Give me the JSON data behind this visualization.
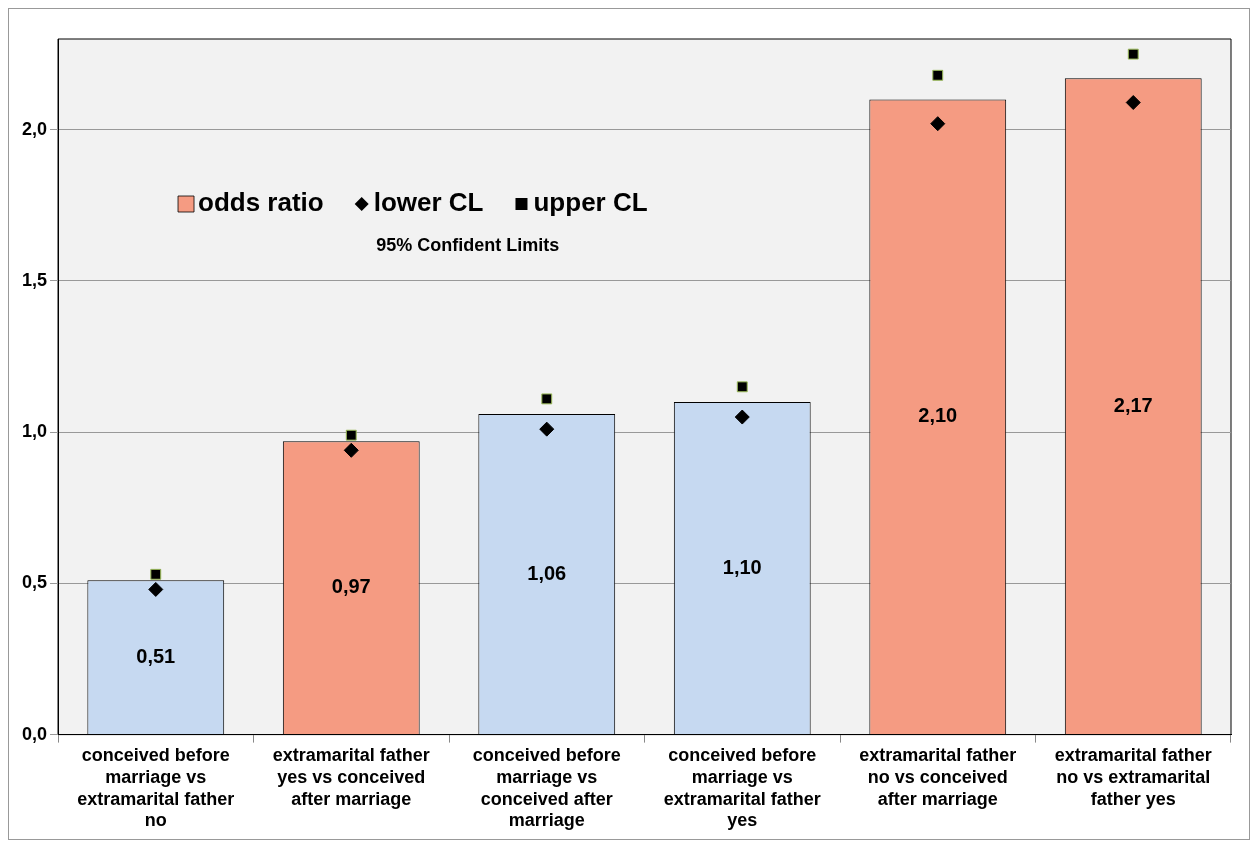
{
  "chart_data": {
    "type": "bar",
    "categories": [
      "conceived before marriage vs extramarital father no",
      "extramarital father yes vs conceived after marriage",
      "conceived before marriage vs conceived after marriage",
      "conceived before marriage vs extramarital father yes",
      "extramarital father no vs conceived after marriage",
      "extramarital father no vs extramarital father yes"
    ],
    "series": [
      {
        "name": "odds ratio",
        "type": "bar",
        "color": "#f59b82",
        "colors": [
          "#c6d9f1",
          "#f59b82",
          "#c6d9f1",
          "#c6d9f1",
          "#f59b82",
          "#f59b82"
        ],
        "values": [
          0.51,
          0.97,
          1.06,
          1.1,
          2.1,
          2.17
        ],
        "value_labels": [
          "0,51",
          "0,97",
          "1,06",
          "1,10",
          "2,10",
          "2,17"
        ]
      },
      {
        "name": "lower CL",
        "type": "scatter",
        "marker": "diamond",
        "color": "#000000",
        "x": [
          "conceived before marriage vs extramarital father no",
          "extramarital father yes vs conceived after marriage",
          "conceived before marriage vs conceived after marriage",
          "conceived before marriage vs extramarital father yes",
          "extramarital father no vs conceived after marriage",
          "extramarital father no vs extramarital father yes"
        ],
        "values": [
          0.48,
          0.94,
          1.01,
          1.05,
          2.02,
          2.09
        ]
      },
      {
        "name": "upper CL",
        "type": "scatter",
        "marker": "square",
        "color": "#000000",
        "x": [
          "conceived before marriage vs extramarital father no",
          "extramarital father yes vs conceived after marriage",
          "conceived before marriage vs conceived after marriage",
          "conceived before marriage vs extramarital father yes",
          "extramarital father no vs conceived after marriage",
          "extramarital father no vs extramarital father yes"
        ],
        "values": [
          0.53,
          0.99,
          1.11,
          1.15,
          2.18,
          2.25
        ]
      }
    ],
    "ylim": [
      0,
      2.3
    ],
    "yticks": [
      {
        "value": 0,
        "label": "0,0"
      },
      {
        "value": 0.5,
        "label": "0,5"
      },
      {
        "value": 1,
        "label": "1,0"
      },
      {
        "value": 1.5,
        "label": "1,5"
      },
      {
        "value": 2,
        "label": "2,0"
      }
    ],
    "grid": "y",
    "legend": "top left",
    "annotations": [
      "95% Confident Limits"
    ]
  }
}
